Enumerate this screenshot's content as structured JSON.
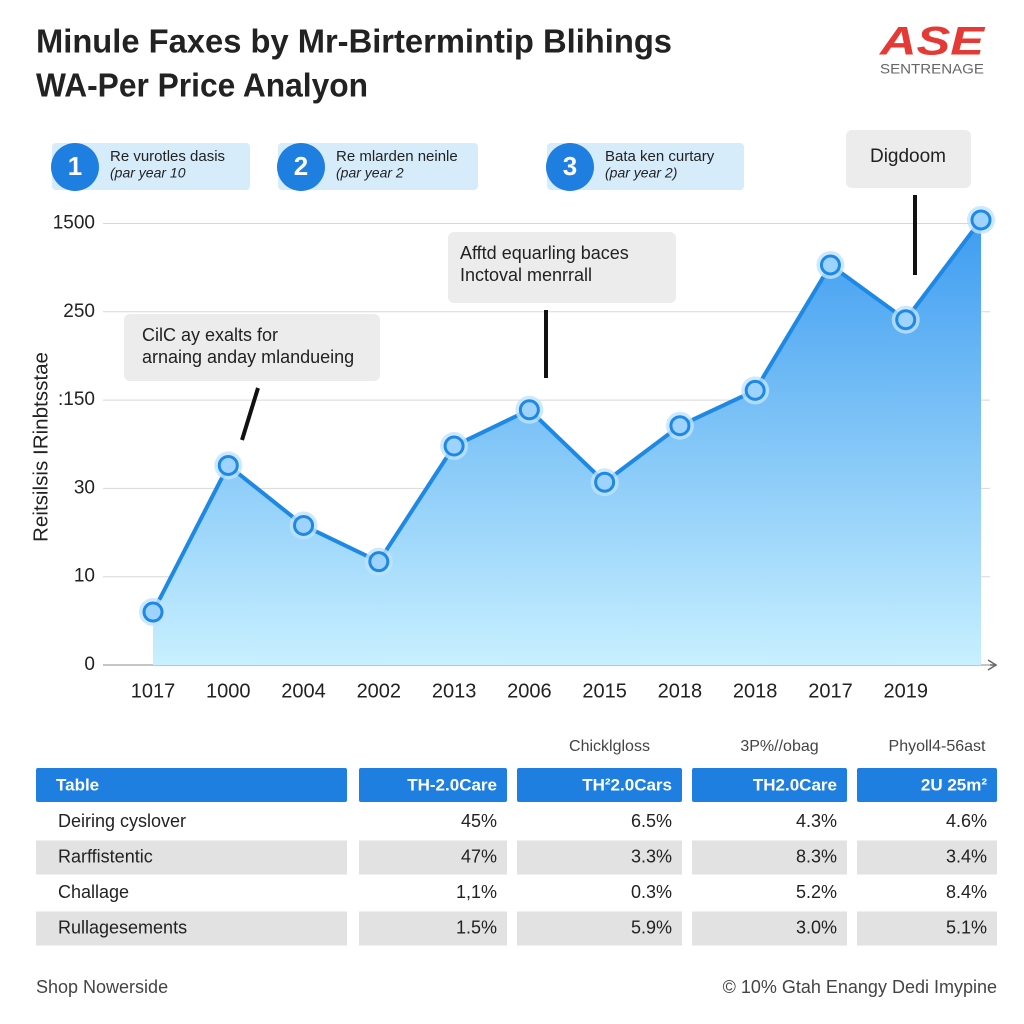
{
  "header": {
    "title_line1": "Minule Faxes by Mr-Birtermintip Blihings",
    "title_line2": "WA-Per Price Analyon",
    "logo": "ASE",
    "logo_sub": "SENTRENAGE"
  },
  "chart_data": {
    "type": "area",
    "y_label": "Reitsilsis IRinbtsstae",
    "categories": [
      "1017",
      "1000",
      "2004",
      "2002",
      "2013",
      "2006",
      "2015",
      "2018",
      "2018",
      "2017",
      "2019",
      null
    ],
    "values": [
      0.6,
      2.26,
      1.58,
      1.17,
      2.48,
      2.89,
      2.07,
      2.71,
      3.11,
      4.53,
      3.91,
      5.04
    ],
    "color": "#1e88e5",
    "ylim": [
      0,
      5.3
    ],
    "yticks": [
      {
        "value": 0,
        "label": "0"
      },
      {
        "value": 1,
        "label": "10"
      },
      {
        "value": 2,
        "label": "30"
      },
      {
        "value": 3,
        "label": ":150"
      },
      {
        "value": 4,
        "label": "250"
      },
      {
        "value": 5,
        "label": "1500"
      }
    ],
    "grid": true,
    "callouts": [
      {
        "number": "1",
        "title": "Re vurotles dasis",
        "subtitle": "(par year 10"
      },
      {
        "number": "2",
        "title": "Re mlarden neinle",
        "subtitle": "(par year 2"
      },
      {
        "number": "3",
        "title": "Bata ken curtary",
        "subtitle": "(par year 2)"
      }
    ],
    "note": "Digdoom",
    "annotations": [
      {
        "lines": [
          "CilC ay exalts for",
          "arnaing anday mlandueing"
        ]
      },
      {
        "lines": [
          "Afftd equarling baces",
          "Inctoval menrrall"
        ]
      }
    ]
  },
  "table": {
    "group_labels": [
      "Chicklgloss",
      "3P%//obag",
      "Phyoll4-56ast"
    ],
    "columns": [
      "Table",
      "TH-2.0Care",
      "TH²2.0Cars",
      "TH2.0Care",
      "2U 25m²"
    ],
    "rows": [
      [
        "Deiring cyslover",
        "45%",
        "6.5%",
        "4.3%",
        "4.6%"
      ],
      [
        "Rarffistentic",
        "47%",
        "3.3%",
        "8.3%",
        "3.4%"
      ],
      [
        "Challage",
        "1,1%",
        "0.3%",
        "5.2%",
        "8.4%"
      ],
      [
        "Rullagesements",
        "1.5%",
        "5.9%",
        "3.0%",
        "5.1%"
      ]
    ]
  },
  "footer": {
    "left": "Shop Nowerside",
    "right": "© 10% Gtah Enangy Dedi Imypine"
  }
}
